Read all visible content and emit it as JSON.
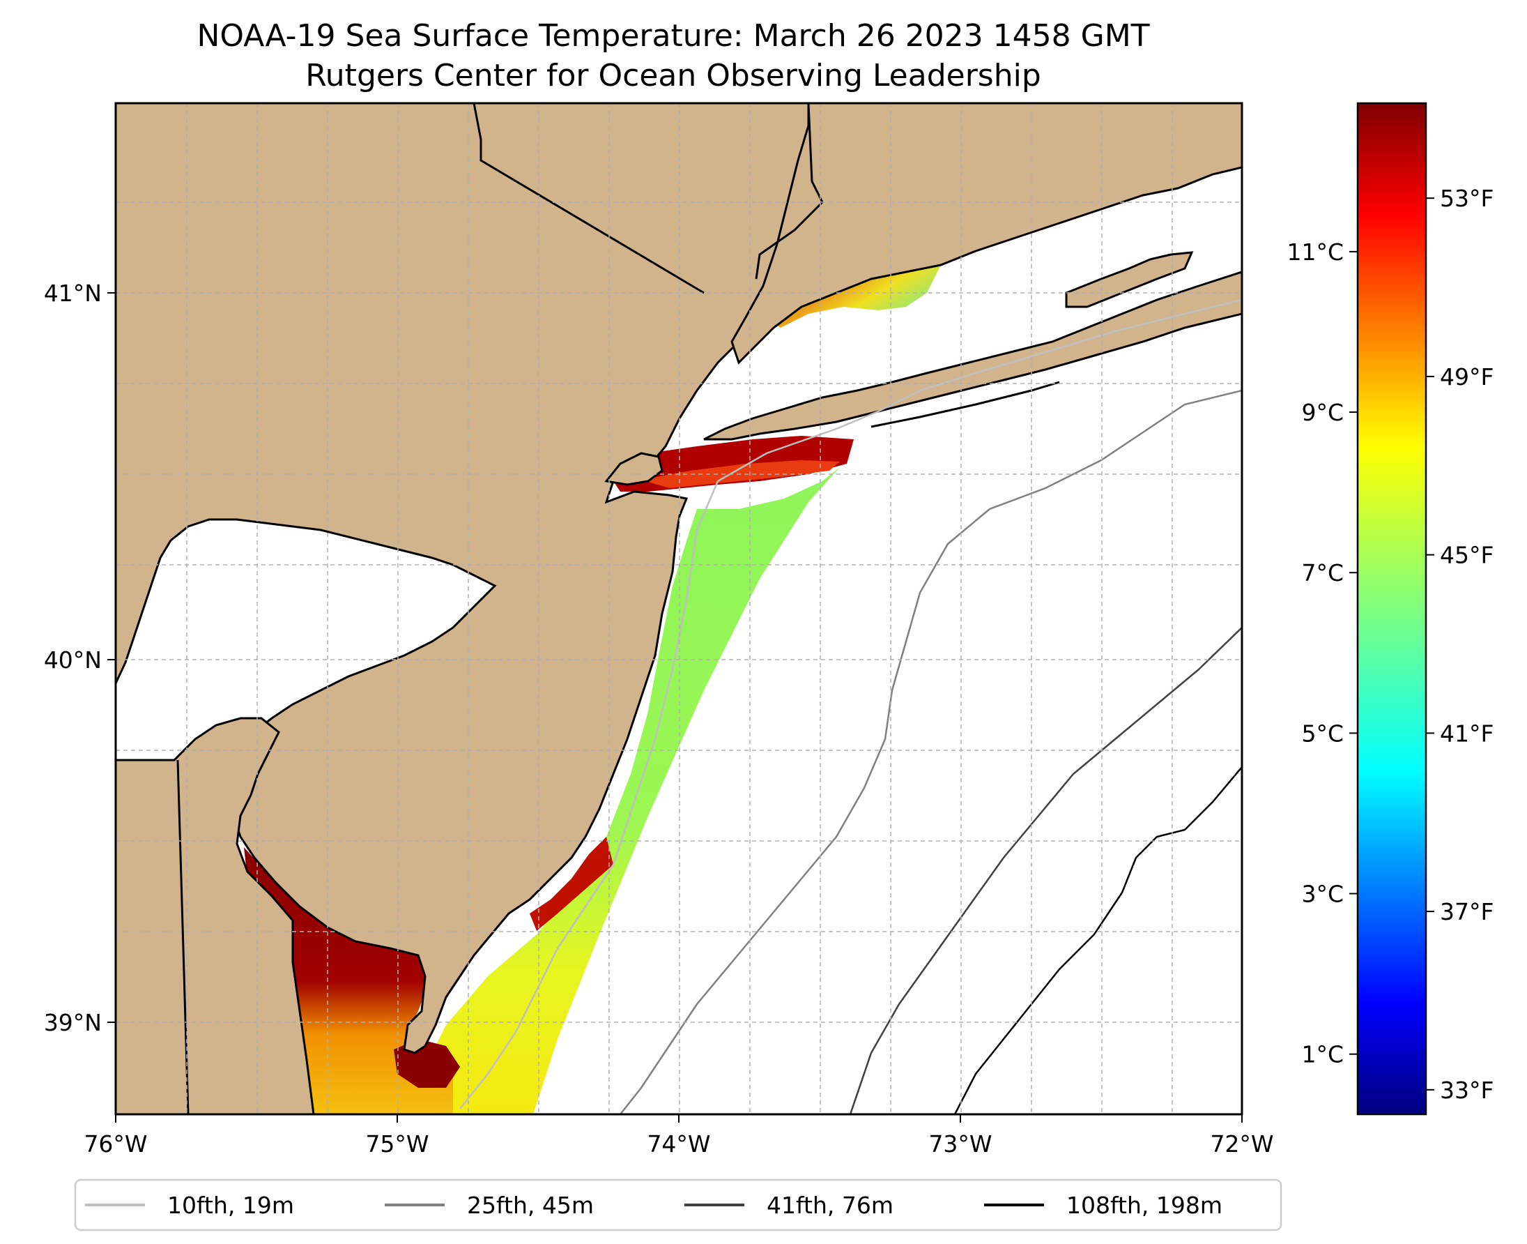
{
  "title": {
    "line1": "NOAA-19 Sea Surface Temperature: March 26 2023 1458 GMT",
    "line2": "Rutgers Center for Ocean Observing Leadership"
  },
  "colors": {
    "land": "#d2b48c",
    "ocean": "#ffffff",
    "grid": "#b0b0b0",
    "contour_10": "#bfbfbf",
    "contour_25": "#808080",
    "contour_41": "#404040",
    "contour_108": "#000000"
  },
  "map": {
    "lon_range": [
      -76,
      -72
    ],
    "lat_range": [
      38.75,
      41.55
    ],
    "lon_ticks": [
      "76°W",
      "75°W",
      "74°W",
      "73°W",
      "72°W"
    ],
    "lat_ticks": [
      "41°N",
      "40°N",
      "39°N"
    ]
  },
  "colorbar": {
    "colormap": "jet",
    "range_c": [
      0.25,
      12.85
    ],
    "celsius_ticks": [
      {
        "value": 1,
        "label": "1°C"
      },
      {
        "value": 3,
        "label": "3°C"
      },
      {
        "value": 5,
        "label": "5°C"
      },
      {
        "value": 7,
        "label": "7°C"
      },
      {
        "value": 9,
        "label": "9°C"
      },
      {
        "value": 11,
        "label": "11°C"
      }
    ],
    "fahrenheit_ticks": [
      {
        "value": 33,
        "label": "33°F"
      },
      {
        "value": 37,
        "label": "37°F"
      },
      {
        "value": 41,
        "label": "41°F"
      },
      {
        "value": 45,
        "label": "45°F"
      },
      {
        "value": 49,
        "label": "49°F"
      },
      {
        "value": 53,
        "label": "53°F"
      }
    ]
  },
  "legend": [
    {
      "label": "10fth, 19m",
      "color": "#bfbfbf"
    },
    {
      "label": "25fth, 45m",
      "color": "#808080"
    },
    {
      "label": "41fth, 76m",
      "color": "#404040"
    },
    {
      "label": "108fth, 198m",
      "color": "#000000"
    }
  ]
}
